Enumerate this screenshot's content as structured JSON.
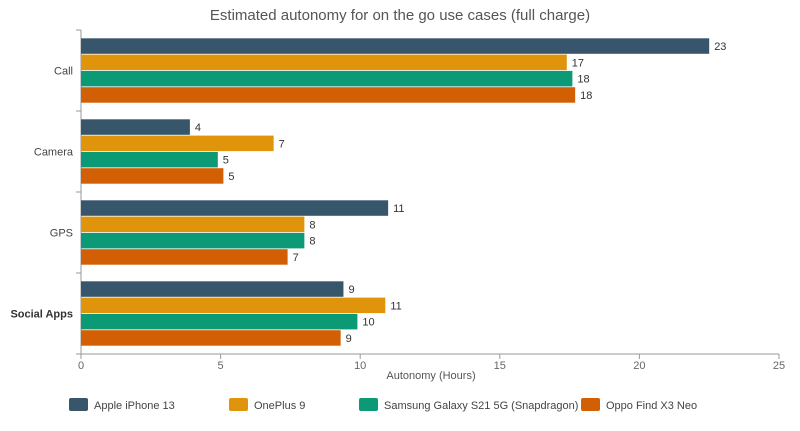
{
  "chart_data": {
    "type": "bar",
    "orientation": "horizontal",
    "title": "Estimated autonomy for on the go use cases (full charge)",
    "xlabel": "Autonomy (Hours)",
    "ylabel": "",
    "xlim": [
      0,
      25
    ],
    "x_ticks": [
      0,
      5,
      10,
      15,
      20,
      25
    ],
    "categories": [
      "Call",
      "Camera",
      "GPS",
      "Social Apps"
    ],
    "series": [
      {
        "name": "Apple iPhone 13",
        "color": "#37566b",
        "values": [
          22.5,
          3.9,
          11.0,
          9.4
        ],
        "labels": [
          "23",
          "4",
          "11",
          "9"
        ]
      },
      {
        "name": "OnePlus 9",
        "color": "#e0940b",
        "values": [
          17.4,
          6.9,
          8.0,
          10.9
        ],
        "labels": [
          "17",
          "7",
          "8",
          "11"
        ]
      },
      {
        "name": "Samsung Galaxy S21 5G (Snapdragon)",
        "color": "#0c9a76",
        "values": [
          17.6,
          4.9,
          8.0,
          9.9
        ],
        "labels": [
          "18",
          "5",
          "8",
          "10"
        ]
      },
      {
        "name": "Oppo Find X3 Neo",
        "color": "#d35f05",
        "values": [
          17.7,
          5.1,
          7.4,
          9.3
        ],
        "labels": [
          "18",
          "5",
          "7",
          "9"
        ]
      }
    ],
    "grid": false,
    "legend_position": "bottom"
  }
}
